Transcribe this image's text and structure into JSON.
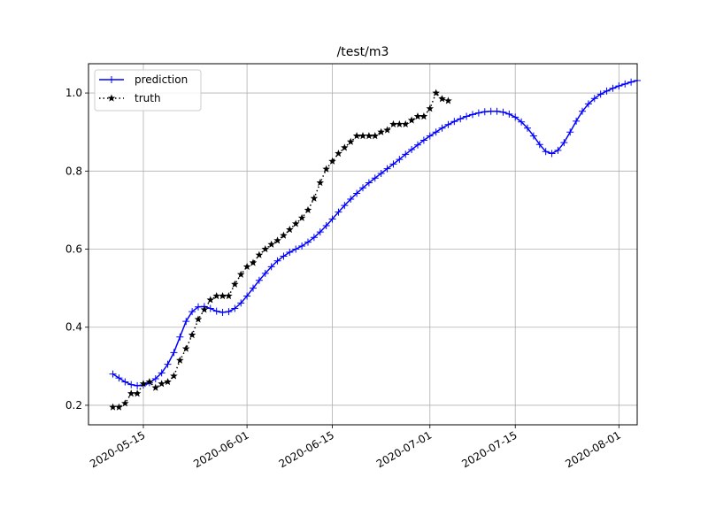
{
  "chart_data": {
    "type": "line",
    "title": "/test/m3",
    "xlabel": "",
    "ylabel": "",
    "x_type": "date",
    "xlim": [
      "2020-05-06",
      "2020-08-04"
    ],
    "ylim": [
      0.15,
      1.075
    ],
    "x_ticks": [
      "2020-05-15",
      "2020-06-01",
      "2020-06-15",
      "2020-07-01",
      "2020-07-15",
      "2020-08-01"
    ],
    "y_ticks": [
      0.2,
      0.4,
      0.6,
      0.8,
      1.0
    ],
    "y_tick_labels": [
      "0.2",
      "0.4",
      "0.6",
      "0.8",
      "1.0"
    ],
    "grid": true,
    "legend_position": "top-left",
    "series": [
      {
        "name": "prediction",
        "color": "#0000ff",
        "line_style": "solid",
        "marker": "plus",
        "points": [
          [
            "2020-05-10",
            0.28
          ],
          [
            "2020-05-11",
            0.27
          ],
          [
            "2020-05-12",
            0.26
          ],
          [
            "2020-05-13",
            0.253
          ],
          [
            "2020-05-14",
            0.25
          ],
          [
            "2020-05-15",
            0.252
          ],
          [
            "2020-05-16",
            0.258
          ],
          [
            "2020-05-17",
            0.268
          ],
          [
            "2020-05-18",
            0.283
          ],
          [
            "2020-05-19",
            0.305
          ],
          [
            "2020-05-20",
            0.335
          ],
          [
            "2020-05-21",
            0.375
          ],
          [
            "2020-05-22",
            0.415
          ],
          [
            "2020-05-23",
            0.44
          ],
          [
            "2020-05-24",
            0.452
          ],
          [
            "2020-05-25",
            0.453
          ],
          [
            "2020-05-26",
            0.448
          ],
          [
            "2020-05-27",
            0.441
          ],
          [
            "2020-05-28",
            0.438
          ],
          [
            "2020-05-29",
            0.44
          ],
          [
            "2020-05-30",
            0.448
          ],
          [
            "2020-05-31",
            0.462
          ],
          [
            "2020-06-01",
            0.48
          ],
          [
            "2020-06-02",
            0.5
          ],
          [
            "2020-06-03",
            0.52
          ],
          [
            "2020-06-04",
            0.538
          ],
          [
            "2020-06-05",
            0.555
          ],
          [
            "2020-06-06",
            0.57
          ],
          [
            "2020-06-07",
            0.582
          ],
          [
            "2020-06-08",
            0.592
          ],
          [
            "2020-06-09",
            0.6
          ],
          [
            "2020-06-10",
            0.608
          ],
          [
            "2020-06-11",
            0.618
          ],
          [
            "2020-06-12",
            0.63
          ],
          [
            "2020-06-13",
            0.644
          ],
          [
            "2020-06-14",
            0.66
          ],
          [
            "2020-06-15",
            0.677
          ],
          [
            "2020-06-16",
            0.695
          ],
          [
            "2020-06-17",
            0.712
          ],
          [
            "2020-06-18",
            0.728
          ],
          [
            "2020-06-19",
            0.743
          ],
          [
            "2020-06-20",
            0.757
          ],
          [
            "2020-06-21",
            0.77
          ],
          [
            "2020-06-22",
            0.782
          ],
          [
            "2020-06-23",
            0.794
          ],
          [
            "2020-06-24",
            0.806
          ],
          [
            "2020-06-25",
            0.818
          ],
          [
            "2020-06-26",
            0.83
          ],
          [
            "2020-06-27",
            0.843
          ],
          [
            "2020-06-28",
            0.855
          ],
          [
            "2020-06-29",
            0.867
          ],
          [
            "2020-06-30",
            0.879
          ],
          [
            "2020-07-01",
            0.89
          ],
          [
            "2020-07-02",
            0.9
          ],
          [
            "2020-07-03",
            0.91
          ],
          [
            "2020-07-04",
            0.919
          ],
          [
            "2020-07-05",
            0.927
          ],
          [
            "2020-07-06",
            0.934
          ],
          [
            "2020-07-07",
            0.94
          ],
          [
            "2020-07-08",
            0.945
          ],
          [
            "2020-07-09",
            0.949
          ],
          [
            "2020-07-10",
            0.952
          ],
          [
            "2020-07-11",
            0.953
          ],
          [
            "2020-07-12",
            0.953
          ],
          [
            "2020-07-13",
            0.951
          ],
          [
            "2020-07-14",
            0.946
          ],
          [
            "2020-07-15",
            0.938
          ],
          [
            "2020-07-16",
            0.926
          ],
          [
            "2020-07-17",
            0.91
          ],
          [
            "2020-07-18",
            0.89
          ],
          [
            "2020-07-19",
            0.868
          ],
          [
            "2020-07-20",
            0.85
          ],
          [
            "2020-07-21",
            0.845
          ],
          [
            "2020-07-22",
            0.853
          ],
          [
            "2020-07-23",
            0.873
          ],
          [
            "2020-07-24",
            0.9
          ],
          [
            "2020-07-25",
            0.928
          ],
          [
            "2020-07-26",
            0.953
          ],
          [
            "2020-07-27",
            0.972
          ],
          [
            "2020-07-28",
            0.986
          ],
          [
            "2020-07-29",
            0.997
          ],
          [
            "2020-07-30",
            1.005
          ],
          [
            "2020-07-31",
            1.012
          ],
          [
            "2020-08-01",
            1.018
          ],
          [
            "2020-08-02",
            1.023
          ],
          [
            "2020-08-03",
            1.028
          ],
          [
            "2020-08-04",
            1.032
          ]
        ]
      },
      {
        "name": "truth",
        "color": "#000000",
        "line_style": "dotted",
        "marker": "star",
        "points": [
          [
            "2020-05-10",
            0.195
          ],
          [
            "2020-05-11",
            0.195
          ],
          [
            "2020-05-12",
            0.205
          ],
          [
            "2020-05-13",
            0.23
          ],
          [
            "2020-05-14",
            0.23
          ],
          [
            "2020-05-15",
            0.255
          ],
          [
            "2020-05-16",
            0.26
          ],
          [
            "2020-05-17",
            0.245
          ],
          [
            "2020-05-18",
            0.255
          ],
          [
            "2020-05-19",
            0.26
          ],
          [
            "2020-05-20",
            0.275
          ],
          [
            "2020-05-21",
            0.315
          ],
          [
            "2020-05-22",
            0.345
          ],
          [
            "2020-05-23",
            0.38
          ],
          [
            "2020-05-24",
            0.42
          ],
          [
            "2020-05-25",
            0.445
          ],
          [
            "2020-05-26",
            0.47
          ],
          [
            "2020-05-27",
            0.48
          ],
          [
            "2020-05-28",
            0.48
          ],
          [
            "2020-05-29",
            0.48
          ],
          [
            "2020-05-30",
            0.51
          ],
          [
            "2020-05-31",
            0.535
          ],
          [
            "2020-06-01",
            0.555
          ],
          [
            "2020-06-02",
            0.565
          ],
          [
            "2020-06-03",
            0.585
          ],
          [
            "2020-06-04",
            0.6
          ],
          [
            "2020-06-05",
            0.612
          ],
          [
            "2020-06-06",
            0.622
          ],
          [
            "2020-06-07",
            0.635
          ],
          [
            "2020-06-08",
            0.65
          ],
          [
            "2020-06-09",
            0.665
          ],
          [
            "2020-06-10",
            0.68
          ],
          [
            "2020-06-11",
            0.7
          ],
          [
            "2020-06-12",
            0.73
          ],
          [
            "2020-06-13",
            0.77
          ],
          [
            "2020-06-14",
            0.805
          ],
          [
            "2020-06-15",
            0.825
          ],
          [
            "2020-06-16",
            0.845
          ],
          [
            "2020-06-17",
            0.86
          ],
          [
            "2020-06-18",
            0.875
          ],
          [
            "2020-06-19",
            0.89
          ],
          [
            "2020-06-20",
            0.89
          ],
          [
            "2020-06-21",
            0.89
          ],
          [
            "2020-06-22",
            0.89
          ],
          [
            "2020-06-23",
            0.9
          ],
          [
            "2020-06-24",
            0.905
          ],
          [
            "2020-06-25",
            0.92
          ],
          [
            "2020-06-26",
            0.92
          ],
          [
            "2020-06-27",
            0.92
          ],
          [
            "2020-06-28",
            0.93
          ],
          [
            "2020-06-29",
            0.94
          ],
          [
            "2020-06-30",
            0.94
          ],
          [
            "2020-07-01",
            0.96
          ],
          [
            "2020-07-02",
            1.0
          ],
          [
            "2020-07-03",
            0.985
          ],
          [
            "2020-07-04",
            0.98
          ]
        ]
      }
    ]
  }
}
